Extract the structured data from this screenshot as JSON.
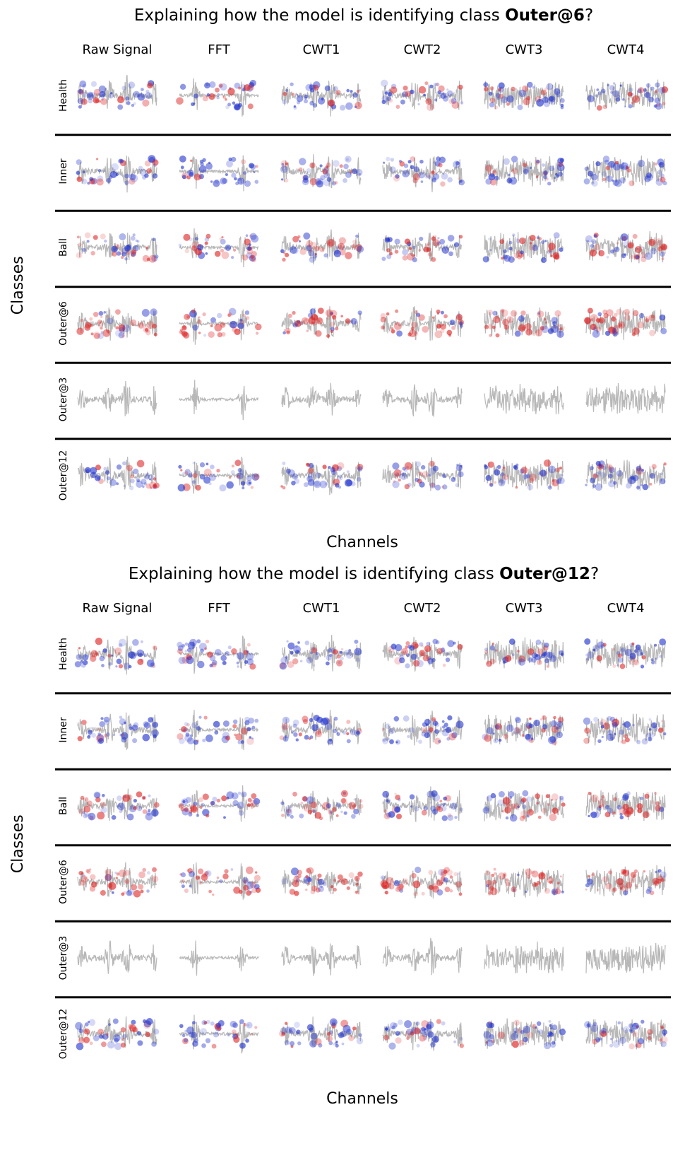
{
  "panels": [
    {
      "title_prefix": "Explaining how the model is identifying class ",
      "title_class": "Outer@6",
      "title_suffix": "?",
      "columns": [
        "Raw Signal",
        "FFT",
        "CWT1",
        "CWT2",
        "CWT3",
        "CWT4"
      ],
      "rows": [
        "Health",
        "Inner",
        "Ball",
        "Outer@6",
        "Outer@3",
        "Outer@12"
      ],
      "y_label": "Classes",
      "x_label": "Channels"
    },
    {
      "title_prefix": "Explaining how the model is identifying class ",
      "title_class": "Outer@12",
      "title_suffix": "?",
      "columns": [
        "Raw Signal",
        "FFT",
        "CWT1",
        "CWT2",
        "CWT3",
        "CWT4"
      ],
      "rows": [
        "Health",
        "Inner",
        "Ball",
        "Outer@6",
        "Outer@3",
        "Outer@12"
      ],
      "y_label": "Classes",
      "x_label": "Channels"
    }
  ]
}
